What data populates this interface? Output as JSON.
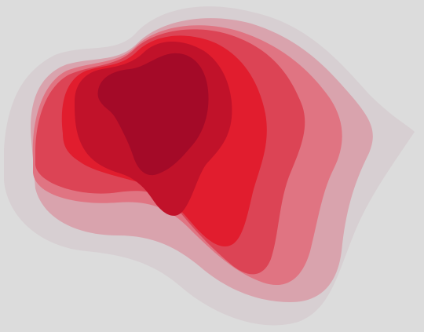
{
  "background_color": "#dcdcdc",
  "layers": [
    {
      "name": "outer-halo",
      "color": "#d7cfd2"
    },
    {
      "name": "layer-2",
      "color": "#d9a3ad"
    },
    {
      "name": "layer-3",
      "color": "#e07482"
    },
    {
      "name": "layer-4",
      "color": "#dc4455"
    },
    {
      "name": "layer-5",
      "color": "#e11d2e"
    },
    {
      "name": "layer-6",
      "color": "#c1122a"
    },
    {
      "name": "core",
      "color": "#a40a28"
    }
  ]
}
